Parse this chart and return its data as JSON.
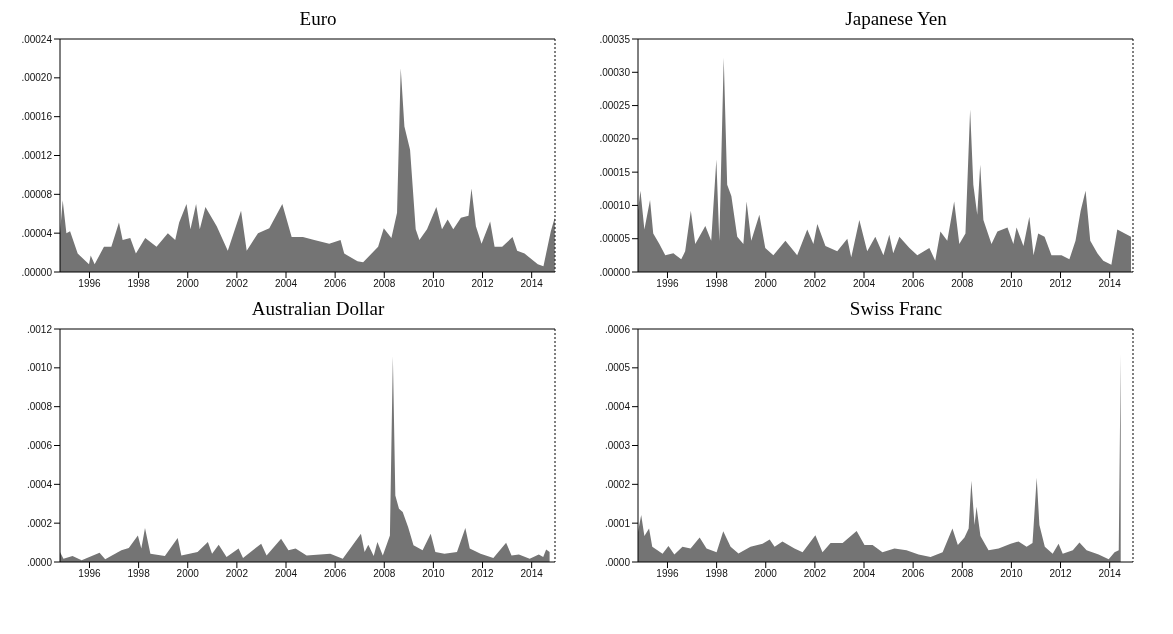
{
  "chart_data": [
    {
      "type": "area",
      "title": "Euro",
      "color": "#747474",
      "xlim": [
        1994.8,
        2014.95
      ],
      "xticks": [
        1996,
        1998,
        2000,
        2002,
        2004,
        2006,
        2008,
        2010,
        2012,
        2014
      ],
      "ylim": [
        0,
        0.00024
      ],
      "yticks": [
        {
          "value": 0,
          "label": ".00000"
        },
        {
          "value": 4e-05,
          "label": ".00004"
        },
        {
          "value": 8e-05,
          "label": ".00008"
        },
        {
          "value": 0.00012,
          "label": ".00012"
        },
        {
          "value": 0.00016,
          "label": ".00016"
        },
        {
          "value": 0.0002,
          "label": ".00020"
        },
        {
          "value": 0.00024,
          "label": ".00024"
        }
      ],
      "x": [
        1994.8,
        1994.91,
        1995.06,
        1995.21,
        1995.52,
        1995.98,
        1996.05,
        1996.21,
        1996.59,
        1996.89,
        1997.2,
        1997.35,
        1997.66,
        1997.89,
        1998.27,
        1998.73,
        1999.19,
        1999.49,
        1999.65,
        1999.95,
        2000.11,
        2000.34,
        2000.49,
        2000.72,
        2001.18,
        2001.63,
        2002.17,
        2002.4,
        2002.86,
        2003.32,
        2003.85,
        2004.23,
        2004.69,
        2005.15,
        2005.76,
        2006.22,
        2006.37,
        2006.91,
        2007.14,
        2007.75,
        2007.98,
        2008.29,
        2008.52,
        2008.67,
        2008.82,
        2009.05,
        2009.28,
        2009.43,
        2009.74,
        2010.12,
        2010.35,
        2010.58,
        2010.81,
        2011.12,
        2011.43,
        2011.55,
        2011.73,
        2011.96,
        2012.31,
        2012.49,
        2012.8,
        2013.22,
        2013.41,
        2013.71,
        2014.25,
        2014.48,
        2014.78,
        2014.94
      ],
      "values": [
        4e-05,
        7.4e-05,
        4e-05,
        4.2e-05,
        1.9e-05,
        8e-06,
        1.7e-05,
        8e-06,
        2.6e-05,
        2.6e-05,
        5.1e-05,
        3.3e-05,
        3.5e-05,
        1.9e-05,
        3.5e-05,
        2.6e-05,
        4e-05,
        3.3e-05,
        5.1e-05,
        7e-05,
        4.4e-05,
        7e-05,
        4.4e-05,
        6.7e-05,
        4.7e-05,
        2.2e-05,
        6.3e-05,
        2.2e-05,
        4e-05,
        4.5e-05,
        7e-05,
        3.6e-05,
        3.6e-05,
        3.3e-05,
        2.9e-05,
        3.3e-05,
        1.9e-05,
        1.1e-05,
        1e-05,
        2.6e-05,
        4.5e-05,
        3.5e-05,
        6.1e-05,
        0.00021,
        0.00015,
        0.000126,
        4.4e-05,
        3.3e-05,
        4.4e-05,
        6.7e-05,
        4.4e-05,
        5.4e-05,
        4.4e-05,
        5.6e-05,
        5.8e-05,
        8.6e-05,
        4.7e-05,
        2.9e-05,
        5.2e-05,
        2.6e-05,
        2.6e-05,
        3.6e-05,
        2.2e-05,
        1.9e-05,
        8e-06,
        6e-06,
        4.2e-05,
        5.6e-05
      ]
    },
    {
      "type": "area",
      "title": "Japanese Yen",
      "color": "#747474",
      "xlim": [
        1994.8,
        2014.95
      ],
      "xticks": [
        1996,
        1998,
        2000,
        2002,
        2004,
        2006,
        2008,
        2010,
        2012,
        2014
      ],
      "ylim": [
        0,
        0.00035
      ],
      "yticks": [
        {
          "value": 0,
          "label": ".00000"
        },
        {
          "value": 5e-05,
          "label": ".00005"
        },
        {
          "value": 0.0001,
          "label": ".00010"
        },
        {
          "value": 0.00015,
          "label": ".00015"
        },
        {
          "value": 0.0002,
          "label": ".00020"
        },
        {
          "value": 0.00025,
          "label": ".00025"
        },
        {
          "value": 0.0003,
          "label": ".00030"
        },
        {
          "value": 0.00035,
          "label": ".00035"
        }
      ],
      "x": [
        1994.8,
        1994.9,
        1995.06,
        1995.29,
        1995.42,
        1995.67,
        1995.91,
        1996.24,
        1996.56,
        1996.72,
        1996.95,
        1997.13,
        1997.54,
        1997.78,
        1997.99,
        1998.11,
        1998.29,
        1998.43,
        1998.6,
        1998.84,
        1999.09,
        1999.22,
        1999.41,
        1999.74,
        1999.98,
        2000.31,
        2000.8,
        2001.28,
        2001.69,
        2001.94,
        2002.1,
        2002.43,
        2002.91,
        2003.32,
        2003.48,
        2003.81,
        2004.13,
        2004.46,
        2004.79,
        2005.03,
        2005.19,
        2005.44,
        2005.85,
        2006.17,
        2006.66,
        2006.9,
        2007.11,
        2007.39,
        2007.67,
        2007.88,
        2008.13,
        2008.32,
        2008.45,
        2008.61,
        2008.73,
        2008.86,
        2009.19,
        2009.43,
        2009.84,
        2010.08,
        2010.21,
        2010.49,
        2010.73,
        2010.9,
        2011.09,
        2011.35,
        2011.63,
        2012.04,
        2012.36,
        2012.61,
        2012.82,
        2013.02,
        2013.21,
        2013.5,
        2013.74,
        2014.07,
        2014.31,
        2014.87
      ],
      "values": [
        9.2e-05,
        0.000122,
        6.4e-05,
        0.000108,
        5.8e-05,
        4.2e-05,
        2.5e-05,
        2.8e-05,
        1.9e-05,
        3.1e-05,
        9.2e-05,
        4.2e-05,
        6.9e-05,
        4.7e-05,
        0.000169,
        4.7e-05,
        0.000322,
        0.000131,
        0.000114,
        5.3e-05,
        4.2e-05,
        0.000106,
        4.7e-05,
        8.6e-05,
        3.6e-05,
        2.5e-05,
        4.7e-05,
        2.5e-05,
        6.4e-05,
        4.2e-05,
        7.2e-05,
        3.9e-05,
        3.1e-05,
        5e-05,
        2.2e-05,
        7.8e-05,
        3.1e-05,
        5.3e-05,
        2.5e-05,
        5.6e-05,
        2.8e-05,
        5.3e-05,
        3.6e-05,
        2.5e-05,
        3.6e-05,
        1.7e-05,
        6.1e-05,
        4.7e-05,
        0.000106,
        4.2e-05,
        5.8e-05,
        0.000244,
        0.000131,
        8.6e-05,
        0.000161,
        7.8e-05,
        4.2e-05,
        6.1e-05,
        6.7e-05,
        4.2e-05,
        6.7e-05,
        3.9e-05,
        8.3e-05,
        2.5e-05,
        5.8e-05,
        5.3e-05,
        2.5e-05,
        2.5e-05,
        1.9e-05,
        4.7e-05,
        9.2e-05,
        0.000122,
        4.7e-05,
        2.8e-05,
        1.7e-05,
        1.1e-05,
        6.4e-05,
        5.3e-05
      ]
    },
    {
      "type": "area",
      "title": "Australian Dollar",
      "color": "#747474",
      "xlim": [
        1994.8,
        2014.95
      ],
      "xticks": [
        1996,
        1998,
        2000,
        2002,
        2004,
        2006,
        2008,
        2010,
        2012,
        2014
      ],
      "ylim": [
        0,
        0.0012
      ],
      "yticks": [
        {
          "value": 0,
          "label": ".0000"
        },
        {
          "value": 0.0002,
          "label": ".0002"
        },
        {
          "value": 0.0004,
          "label": ".0004"
        },
        {
          "value": 0.0006,
          "label": ".0006"
        },
        {
          "value": 0.0008,
          "label": ".0008"
        },
        {
          "value": 0.001,
          "label": ".0010"
        },
        {
          "value": 0.0012,
          "label": ".0012"
        }
      ],
      "x": [
        1994.8,
        1994.94,
        1995.31,
        1995.68,
        1996.41,
        1996.64,
        1997.3,
        1997.6,
        1997.97,
        1998.11,
        1998.26,
        1998.48,
        1999.07,
        1999.59,
        1999.74,
        2000.4,
        2000.82,
        2000.99,
        2001.26,
        2001.58,
        2002.07,
        2002.25,
        2002.99,
        2003.21,
        2003.8,
        2004.1,
        2004.39,
        2004.84,
        2005.8,
        2006.31,
        2007.05,
        2007.2,
        2007.35,
        2007.57,
        2007.72,
        2007.94,
        2008.23,
        2008.35,
        2008.45,
        2008.6,
        2008.75,
        2008.97,
        2009.19,
        2009.56,
        2009.89,
        2010.08,
        2010.45,
        2010.96,
        2011.3,
        2011.48,
        2011.92,
        2012.44,
        2012.96,
        2013.18,
        2013.48,
        2013.92,
        2014.29,
        2014.47,
        2014.59,
        2014.73
      ],
      "values": [
        5.1e-05,
        1.7e-05,
        3.1e-05,
        9e-06,
        4.8e-05,
        1.4e-05,
        6e-05,
        7.2e-05,
        0.000137,
        6.9e-05,
        0.000175,
        4.3e-05,
        3.1e-05,
        0.000123,
        3.4e-05,
        5.1e-05,
        0.000103,
        4.3e-05,
        8.9e-05,
        2.6e-05,
        6.9e-05,
        2.1e-05,
        9.4e-05,
        3.4e-05,
        0.00012,
        6e-05,
        6.9e-05,
        3.4e-05,
        4.3e-05,
        1.7e-05,
        0.000146,
        5.1e-05,
        8.9e-05,
        3.1e-05,
        0.000103,
        3.4e-05,
        0.000137,
        0.00106,
        0.000343,
        0.000274,
        0.000257,
        0.00018,
        8.6e-05,
        6e-05,
        0.000146,
        5.1e-05,
        4.3e-05,
        5.1e-05,
        0.000175,
        6.9e-05,
        4.3e-05,
        2.1e-05,
        9.9e-05,
        3.4e-05,
        3.9e-05,
        1.7e-05,
        3.8e-05,
        2.6e-05,
        6.5e-05,
        5.1e-05
      ]
    },
    {
      "type": "area",
      "title": "Swiss Franc",
      "color": "#747474",
      "xlim": [
        1994.8,
        2014.95
      ],
      "xticks": [
        1996,
        1998,
        2000,
        2002,
        2004,
        2006,
        2008,
        2010,
        2012,
        2014
      ],
      "ylim": [
        0,
        0.0006
      ],
      "yticks": [
        {
          "value": 0,
          "label": ".0000"
        },
        {
          "value": 0.0001,
          "label": ".0001"
        },
        {
          "value": 0.0002,
          "label": ".0002"
        },
        {
          "value": 0.0003,
          "label": ".0003"
        },
        {
          "value": 0.0004,
          "label": ".0004"
        },
        {
          "value": 0.0005,
          "label": ".0005"
        },
        {
          "value": 0.0006,
          "label": ".0006"
        }
      ],
      "x": [
        1994.8,
        1994.93,
        1995.06,
        1995.25,
        1995.38,
        1995.8,
        1996.04,
        1996.28,
        1996.61,
        1996.94,
        1997.31,
        1997.59,
        1998.0,
        1998.27,
        1998.57,
        1998.89,
        1999.38,
        1999.87,
        2000.16,
        2000.36,
        2000.68,
        2001.17,
        2001.5,
        2002.02,
        2002.31,
        2002.64,
        2003.13,
        2003.7,
        2004.02,
        2004.35,
        2004.75,
        2005.24,
        2005.73,
        2006.22,
        2006.71,
        2007.2,
        2007.6,
        2007.82,
        2008.09,
        2008.26,
        2008.37,
        2008.5,
        2008.58,
        2008.74,
        2009.07,
        2009.48,
        2009.97,
        2010.29,
        2010.62,
        2010.86,
        2011.03,
        2011.14,
        2011.36,
        2011.68,
        2011.92,
        2012.09,
        2012.5,
        2012.77,
        2013.06,
        2013.55,
        2013.96,
        2014.2,
        2014.37,
        2014.45
      ],
      "values": [
        7.7e-05,
        0.000121,
        6.7e-05,
        8.6e-05,
        3.9e-05,
        2.1e-05,
        4.1e-05,
        1.9e-05,
        3.9e-05,
        3.5e-05,
        6.3e-05,
        3.5e-05,
        2.5e-05,
        7.9e-05,
        3.9e-05,
        2.2e-05,
        3.9e-05,
        4.7e-05,
        5.8e-05,
        3.9e-05,
        5.3e-05,
        3.5e-05,
        2.5e-05,
        6.9e-05,
        2.5e-05,
        4.9e-05,
        4.9e-05,
        8e-05,
        4.4e-05,
        4.4e-05,
        2.5e-05,
        3.5e-05,
        3e-05,
        1.9e-05,
        1.3e-05,
        2.5e-05,
        8.6e-05,
        4.4e-05,
        6.3e-05,
        8.6e-05,
        0.000209,
        9.5e-05,
        0.000142,
        6.7e-05,
        3e-05,
        3.5e-05,
        4.7e-05,
        5.3e-05,
        3.9e-05,
        4.9e-05,
        0.000217,
        9.5e-05,
        3.9e-05,
        2.1e-05,
        4.7e-05,
        2.1e-05,
        3e-05,
        5e-05,
        3e-05,
        1.9e-05,
        7e-06,
        2.5e-05,
        3e-05,
        0.000535
      ]
    }
  ]
}
